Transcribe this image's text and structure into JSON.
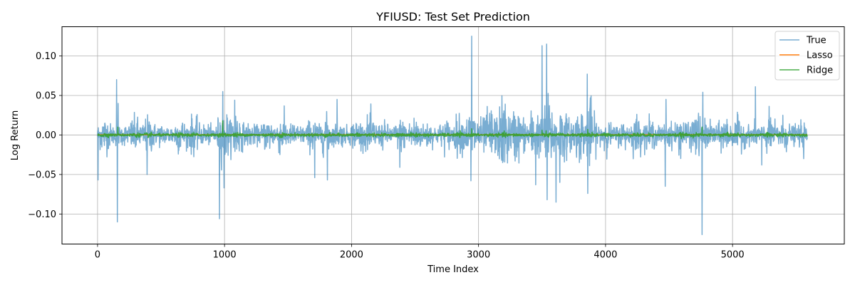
{
  "chart_data": {
    "type": "line",
    "title": "YFIUSD: Test Set Prediction",
    "xlabel": "Time Index",
    "ylabel": "Log Return",
    "xlim": [
      -280,
      5880
    ],
    "ylim": [
      -0.138,
      0.137
    ],
    "grid": true,
    "legend_position": "top-right",
    "x_ticks": [
      0,
      1000,
      2000,
      3000,
      4000,
      5000
    ],
    "y_ticks": [
      -0.1,
      -0.05,
      0.0,
      0.05,
      0.1
    ],
    "x_tick_labels": [
      "0",
      "1000",
      "2000",
      "3000",
      "4000",
      "5000"
    ],
    "y_tick_labels": [
      "−0.10",
      "−0.05",
      "0.00",
      "0.05",
      "0.10"
    ],
    "n_points": 5590,
    "series": [
      {
        "name": "True",
        "color": "#1f77b4",
        "opacity": 0.6,
        "base_amplitude": 0.012,
        "spikes": [
          {
            "x": 3,
            "y": -0.057
          },
          {
            "x": 150,
            "y": 0.07
          },
          {
            "x": 155,
            "y": -0.11
          },
          {
            "x": 162,
            "y": 0.04
          },
          {
            "x": 390,
            "y": -0.05
          },
          {
            "x": 960,
            "y": -0.106
          },
          {
            "x": 985,
            "y": 0.055
          },
          {
            "x": 995,
            "y": -0.067
          },
          {
            "x": 1080,
            "y": 0.044
          },
          {
            "x": 1710,
            "y": -0.054
          },
          {
            "x": 1810,
            "y": -0.057
          },
          {
            "x": 1885,
            "y": 0.045
          },
          {
            "x": 2380,
            "y": -0.041
          },
          {
            "x": 2945,
            "y": 0.125
          },
          {
            "x": 2940,
            "y": -0.058
          },
          {
            "x": 3450,
            "y": -0.063
          },
          {
            "x": 3500,
            "y": 0.113
          },
          {
            "x": 3535,
            "y": 0.115
          },
          {
            "x": 3540,
            "y": -0.082
          },
          {
            "x": 3610,
            "y": -0.085
          },
          {
            "x": 3640,
            "y": -0.06
          },
          {
            "x": 3855,
            "y": 0.077
          },
          {
            "x": 3860,
            "y": -0.074
          },
          {
            "x": 4470,
            "y": -0.065
          },
          {
            "x": 4475,
            "y": 0.045
          },
          {
            "x": 4760,
            "y": -0.126
          },
          {
            "x": 4765,
            "y": 0.054
          },
          {
            "x": 5180,
            "y": 0.061
          },
          {
            "x": 5230,
            "y": -0.038
          },
          {
            "x": 5560,
            "y": -0.03
          }
        ],
        "volatile_regions": [
          {
            "from": 2900,
            "to": 3900,
            "amplitude": 0.022
          },
          {
            "from": 940,
            "to": 1100,
            "amplitude": 0.018
          },
          {
            "from": 4700,
            "to": 4800,
            "amplitude": 0.02
          }
        ]
      },
      {
        "name": "Lasso",
        "color": "#ff7f0e",
        "opacity": 1.0,
        "constant_value": 0.0003
      },
      {
        "name": "Ridge",
        "color": "#2ca02c",
        "opacity": 0.85,
        "base_amplitude": 0.0015,
        "spikes": [
          {
            "x": 160,
            "y": 0.01
          },
          {
            "x": 985,
            "y": 0.018
          },
          {
            "x": 2945,
            "y": 0.008
          },
          {
            "x": 3500,
            "y": 0.006
          },
          {
            "x": 3860,
            "y": 0.007
          },
          {
            "x": 4760,
            "y": 0.01
          }
        ]
      }
    ]
  }
}
